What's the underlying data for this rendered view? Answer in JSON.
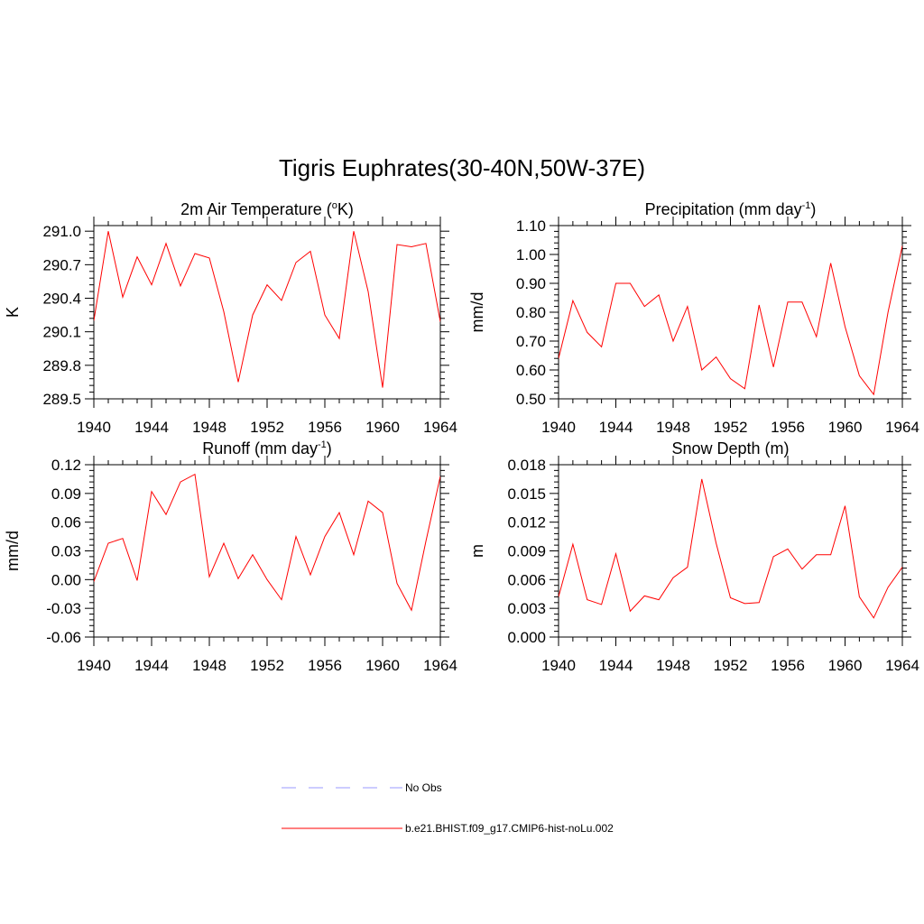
{
  "figure": {
    "title": "Tigris Euphrates(30-40N,50W-37E)"
  },
  "colors": {
    "series": "#ff0000",
    "obs": "#9999ff",
    "axis": "#000000"
  },
  "legend": {
    "placement": "bottom-center",
    "items": [
      {
        "label": "No Obs",
        "color": "#9999ff",
        "style": "dashed"
      },
      {
        "label": "b.e21.BHIST.f09_g17.CMIP6-hist-noLu.002",
        "color": "#ff0000",
        "style": "solid"
      }
    ]
  },
  "chart_data": [
    {
      "type": "line",
      "title": "2m Air Temperature (",
      "title_sup": "o",
      "title_after": "K)",
      "title_sup2": "",
      "title_end": "",
      "ylabel": "K",
      "xlim": [
        1940,
        1964
      ],
      "ylim": [
        289.5,
        291.05
      ],
      "xticks": [
        1940,
        1944,
        1948,
        1952,
        1956,
        1960,
        1964
      ],
      "xtick_labels": [
        "1940",
        "1944",
        "1948",
        "1952",
        "1956",
        "1960",
        "1964"
      ],
      "yticks": [
        289.5,
        289.8,
        290.1,
        290.4,
        290.7,
        291.0
      ],
      "ytick_labels": [
        "289.5",
        "289.8",
        "290.1",
        "290.4",
        "290.7",
        "291.0"
      ],
      "yminor": 0.06,
      "xminor": 1,
      "x": [
        1940,
        1941,
        1942,
        1943,
        1944,
        1945,
        1946,
        1947,
        1948,
        1949,
        1950,
        1951,
        1952,
        1953,
        1954,
        1955,
        1956,
        1957,
        1958,
        1959,
        1960,
        1961,
        1962,
        1963,
        1964
      ],
      "series": [
        {
          "values": [
            290.2,
            291.0,
            290.41,
            290.77,
            290.52,
            290.89,
            290.51,
            290.8,
            290.76,
            290.28,
            289.65,
            290.25,
            290.52,
            290.38,
            290.72,
            290.82,
            290.25,
            290.04,
            291.0,
            290.46,
            289.6,
            290.88,
            290.86,
            290.89,
            290.19
          ]
        }
      ]
    },
    {
      "type": "line",
      "title": "Precipitation (mm day",
      "title_sup": "",
      "title_after": "",
      "title_sup2": "-1",
      "title_end": ")",
      "ylabel": "mm/d",
      "xlim": [
        1940,
        1964
      ],
      "ylim": [
        0.5,
        1.1
      ],
      "xticks": [
        1940,
        1944,
        1948,
        1952,
        1956,
        1960,
        1964
      ],
      "xtick_labels": [
        "1940",
        "1944",
        "1948",
        "1952",
        "1956",
        "1960",
        "1964"
      ],
      "yticks": [
        0.5,
        0.6,
        0.7,
        0.8,
        0.9,
        1.0,
        1.1
      ],
      "ytick_labels": [
        "0.50",
        "0.60",
        "0.70",
        "0.80",
        "0.90",
        "1.00",
        "1.10"
      ],
      "yminor": 0.02,
      "xminor": 1,
      "x": [
        1940,
        1941,
        1942,
        1943,
        1944,
        1945,
        1946,
        1947,
        1948,
        1949,
        1950,
        1951,
        1952,
        1953,
        1954,
        1955,
        1956,
        1957,
        1958,
        1959,
        1960,
        1961,
        1962,
        1963,
        1964
      ],
      "series": [
        {
          "values": [
            0.64,
            0.84,
            0.73,
            0.68,
            0.9,
            0.9,
            0.82,
            0.86,
            0.7,
            0.82,
            0.6,
            0.645,
            0.57,
            0.535,
            0.825,
            0.61,
            0.835,
            0.835,
            0.715,
            0.97,
            0.75,
            0.58,
            0.515,
            0.8,
            1.03
          ]
        }
      ]
    },
    {
      "type": "line",
      "title": "Runoff (mm day",
      "title_sup": "",
      "title_after": "",
      "title_sup2": "-1",
      "title_end": ")",
      "ylabel": "mm/d",
      "xlim": [
        1940,
        1964
      ],
      "ylim": [
        -0.06,
        0.12
      ],
      "xticks": [
        1940,
        1944,
        1948,
        1952,
        1956,
        1960,
        1964
      ],
      "xtick_labels": [
        "1940",
        "1944",
        "1948",
        "1952",
        "1956",
        "1960",
        "1964"
      ],
      "yticks": [
        -0.06,
        -0.03,
        0.0,
        0.03,
        0.06,
        0.09,
        0.12
      ],
      "ytick_labels": [
        "-0.06",
        "-0.03",
        "0.00",
        "0.03",
        "0.06",
        "0.09",
        "0.12"
      ],
      "yminor": 0.006,
      "xminor": 1,
      "x": [
        1940,
        1941,
        1942,
        1943,
        1944,
        1945,
        1946,
        1947,
        1948,
        1949,
        1950,
        1951,
        1952,
        1953,
        1954,
        1955,
        1956,
        1957,
        1958,
        1959,
        1960,
        1961,
        1962,
        1963,
        1964
      ],
      "series": [
        {
          "values": [
            -0.002,
            0.038,
            0.043,
            -0.001,
            0.092,
            0.068,
            0.102,
            0.11,
            0.003,
            0.038,
            0.001,
            0.026,
            0.0,
            -0.021,
            0.045,
            0.005,
            0.045,
            0.07,
            0.026,
            0.082,
            0.07,
            -0.004,
            -0.032,
            0.04,
            0.108
          ]
        }
      ]
    },
    {
      "type": "line",
      "title": "Snow Depth (m)",
      "title_sup": "",
      "title_after": "",
      "title_sup2": "",
      "title_end": "",
      "ylabel": "m",
      "xlim": [
        1940,
        1964
      ],
      "ylim": [
        0.0,
        0.018
      ],
      "xticks": [
        1940,
        1944,
        1948,
        1952,
        1956,
        1960,
        1964
      ],
      "xtick_labels": [
        "1940",
        "1944",
        "1948",
        "1952",
        "1956",
        "1960",
        "1964"
      ],
      "yticks": [
        0.0,
        0.003,
        0.006,
        0.009,
        0.012,
        0.015,
        0.018
      ],
      "ytick_labels": [
        "0.000",
        "0.003",
        "0.006",
        "0.009",
        "0.012",
        "0.015",
        "0.018"
      ],
      "yminor": 0.0006,
      "xminor": 1,
      "x": [
        1940,
        1941,
        1942,
        1943,
        1944,
        1945,
        1946,
        1947,
        1948,
        1949,
        1950,
        1951,
        1952,
        1953,
        1954,
        1955,
        1956,
        1957,
        1958,
        1959,
        1960,
        1961,
        1962,
        1963,
        1964
      ],
      "series": [
        {
          "values": [
            0.0042,
            0.0097,
            0.0039,
            0.0034,
            0.0087,
            0.0027,
            0.0043,
            0.0039,
            0.0062,
            0.0073,
            0.0165,
            0.0098,
            0.0041,
            0.0035,
            0.0036,
            0.0084,
            0.0092,
            0.0071,
            0.0086,
            0.0086,
            0.0137,
            0.0042,
            0.002,
            0.0052,
            0.0073
          ]
        }
      ]
    }
  ]
}
